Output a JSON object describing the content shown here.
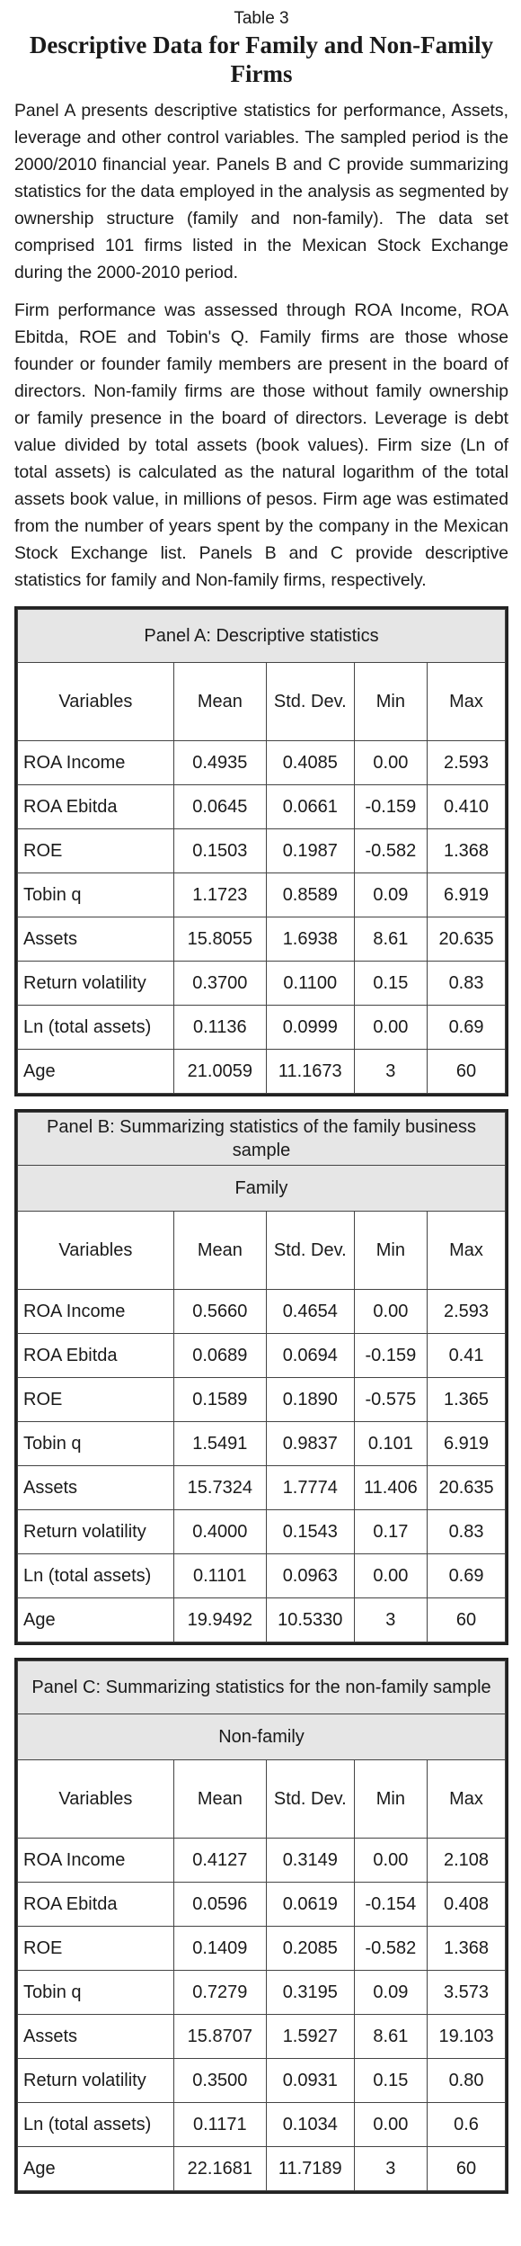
{
  "header": {
    "caption": "Table 3",
    "title": "Descriptive Data for Family and Non-Family Firms"
  },
  "paragraphs": [
    "Panel A presents descriptive statistics for performance, Assets, leverage and other control variables. The sampled period is the 2000/2010 financial year. Panels B and C provide summarizing statistics for the data employed in the analysis as segmented by ownership structure (family and non-family). The data set comprised 101 firms listed in the Mexican Stock Exchange during the 2000-2010 period.",
    "Firm performance was assessed through ROA Income, ROA Ebitda, ROE and Tobin's Q. Family firms are those whose founder or founder family members are present in the board of directors. Non-family firms are those without family ownership or family presence in the board of directors. Leverage is debt value divided by total assets (book values). Firm size (Ln of total assets) is calculated as the natural logarithm of the total assets book value, in millions of pesos. Firm age was estimated from the number of years spent by the company in the Mexican Stock Exchange list. Panels B and C provide descriptive statistics for family and Non-family firms, respectively."
  ],
  "panels": [
    {
      "title": "Panel A: Descriptive statistics",
      "columns": [
        "Variables",
        "Mean",
        "Std. Dev.",
        "Min",
        "Max"
      ],
      "rows": [
        [
          "ROA Income",
          "0.4935",
          "0.4085",
          "0.00",
          "2.593"
        ],
        [
          "ROA Ebitda",
          "0.0645",
          "0.0661",
          "-0.159",
          "0.410"
        ],
        [
          "ROE",
          "0.1503",
          "0.1987",
          "-0.582",
          "1.368"
        ],
        [
          "Tobin q",
          "1.1723",
          "0.8589",
          "0.09",
          "6.919"
        ],
        [
          "Assets",
          "15.8055",
          "1.6938",
          "8.61",
          "20.635"
        ],
        [
          "Return volatility",
          "0.3700",
          "0.1100",
          "0.15",
          "0.83"
        ],
        [
          "Ln (total assets)",
          "0.1136",
          "0.0999",
          "0.00",
          "0.69"
        ],
        [
          "Age",
          "21.0059",
          "11.1673",
          "3",
          "60"
        ]
      ]
    },
    {
      "title": "Panel B: Summarizing statistics of the family business sample",
      "subtitle": "Family",
      "columns": [
        "Variables",
        "Mean",
        "Std. Dev.",
        "Min",
        "Max"
      ],
      "rows": [
        [
          "ROA Income",
          "0.5660",
          "0.4654",
          "0.00",
          "2.593"
        ],
        [
          "ROA Ebitda",
          "0.0689",
          "0.0694",
          "-0.159",
          "0.41"
        ],
        [
          "ROE",
          "0.1589",
          "0.1890",
          "-0.575",
          "1.365"
        ],
        [
          "Tobin q",
          "1.5491",
          "0.9837",
          "0.101",
          "6.919"
        ],
        [
          "Assets",
          "15.7324",
          "1.7774",
          "11.406",
          "20.635"
        ],
        [
          "Return volatility",
          "0.4000",
          "0.1543",
          "0.17",
          "0.83"
        ],
        [
          "Ln (total assets)",
          "0.1101",
          "0.0963",
          "0.00",
          "0.69"
        ],
        [
          "Age",
          "19.9492",
          "10.5330",
          "3",
          "60"
        ]
      ]
    },
    {
      "title": "Panel C: Summarizing statistics for the non-family sample",
      "subtitle": "Non-family",
      "columns": [
        "Variables",
        "Mean",
        "Std. Dev.",
        "Min",
        "Max"
      ],
      "rows": [
        [
          "ROA Income",
          "0.4127",
          "0.3149",
          "0.00",
          "2.108"
        ],
        [
          "ROA Ebitda",
          "0.0596",
          "0.0619",
          "-0.154",
          "0.408"
        ],
        [
          "ROE",
          "0.1409",
          "0.2085",
          "-0.582",
          "1.368"
        ],
        [
          "Tobin q",
          "0.7279",
          "0.3195",
          "0.09",
          "3.573"
        ],
        [
          "Assets",
          "15.8707",
          "1.5927",
          "8.61",
          "19.103"
        ],
        [
          "Return volatility",
          "0.3500",
          "0.0931",
          "0.15",
          "0.80"
        ],
        [
          "Ln (total assets)",
          "0.1171",
          "0.1034",
          "0.00",
          "0.6"
        ],
        [
          "Age",
          "22.1681",
          "11.7189",
          "3",
          "60"
        ]
      ]
    }
  ]
}
